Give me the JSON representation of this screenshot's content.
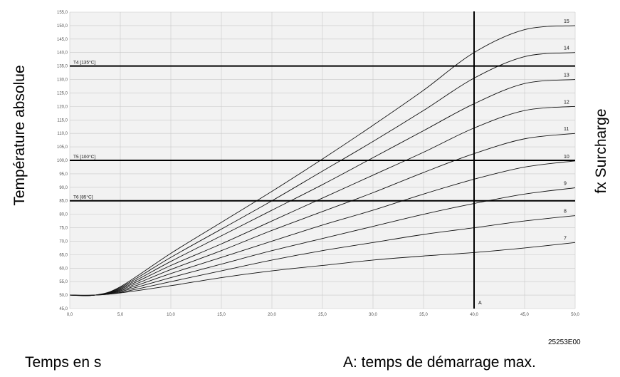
{
  "chart_data": {
    "type": "line",
    "ylabel": "Température absolue",
    "y2label": "fx Surcharge",
    "xlabel": "Temps en s",
    "footnote": "A: temps de démarrage max.",
    "code": "25253E00",
    "xlim": [
      0,
      50
    ],
    "ylim": [
      45,
      155
    ],
    "grid": true,
    "x_ticks": [
      "0,0",
      "5,0",
      "10,0",
      "15,0",
      "20,0",
      "25,0",
      "30,0",
      "35,0",
      "40,0",
      "45,0",
      "50,0"
    ],
    "y_ticks": [
      "45,0",
      "50,0",
      "55,0",
      "60,0",
      "65,0",
      "70,0",
      "75,0",
      "80,0",
      "85,0",
      "90,0",
      "95,0",
      "100,0",
      "105,0",
      "110,0",
      "115,0",
      "120,0",
      "125,0",
      "130,0",
      "135,0",
      "140,0",
      "145,0",
      "150,0",
      "155,0"
    ],
    "hlines": [
      {
        "label": "T4 [135°C]",
        "y": 135
      },
      {
        "label": "T5 [100°C]",
        "y": 100
      },
      {
        "label": "T6 [85°C]",
        "y": 85
      }
    ],
    "vline": {
      "label": "A",
      "x": 40
    },
    "x": [
      0,
      2.5,
      5,
      10,
      15,
      20,
      25,
      30,
      35,
      40,
      45,
      50
    ],
    "series": [
      {
        "name": "7",
        "values": [
          50,
          50,
          50.8,
          53.5,
          56.5,
          59,
          61,
          63,
          64.5,
          65.8,
          67.5,
          69.5
        ]
      },
      {
        "name": "8",
        "values": [
          50,
          50,
          51,
          55,
          59,
          63,
          66.5,
          69.5,
          72.5,
          75,
          77.5,
          79.5
        ]
      },
      {
        "name": "9",
        "values": [
          50,
          50,
          51.3,
          56.5,
          61.5,
          66.5,
          71,
          75.5,
          80,
          84,
          87.5,
          89.8
        ]
      },
      {
        "name": "10",
        "values": [
          50,
          50,
          51.6,
          58,
          64,
          70,
          76,
          81.5,
          87.5,
          93,
          97.5,
          99.8
        ]
      },
      {
        "name": "11",
        "values": [
          50,
          50,
          51.9,
          59.5,
          66.5,
          74,
          81,
          88,
          95.5,
          102.5,
          108,
          110
        ]
      },
      {
        "name": "12",
        "values": [
          50,
          50,
          52.2,
          61,
          69,
          77.5,
          86,
          94.5,
          103,
          112,
          118.5,
          120
        ]
      },
      {
        "name": "13",
        "values": [
          50,
          50,
          52.5,
          62.5,
          72,
          81.5,
          91,
          101,
          111,
          121,
          128.5,
          130
        ]
      },
      {
        "name": "14",
        "values": [
          50,
          50,
          52.8,
          64,
          74.5,
          85,
          96,
          107,
          118.5,
          130.5,
          138.5,
          140
        ]
      },
      {
        "name": "15",
        "values": [
          50,
          50,
          53.1,
          65.5,
          77,
          88.5,
          100.5,
          113,
          126,
          140,
          148.5,
          150
        ]
      }
    ]
  }
}
